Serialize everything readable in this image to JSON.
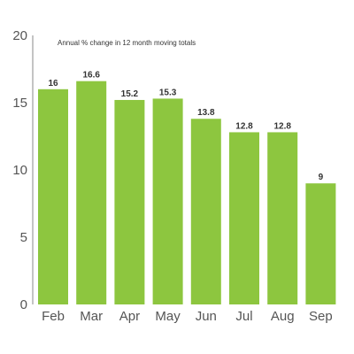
{
  "chart_data": {
    "type": "bar",
    "annotation": "Annual % change in 12 month moving totals",
    "categories": [
      "Feb",
      "Mar",
      "Apr",
      "May",
      "Jun",
      "Jul",
      "Aug",
      "Sep"
    ],
    "values": [
      16,
      16.6,
      15.2,
      15.3,
      13.8,
      12.8,
      12.8,
      9
    ],
    "value_labels": [
      "16",
      "16.6",
      "15.2",
      "15.3",
      "13.8",
      "12.8",
      "12.8",
      "9"
    ],
    "y_ticks": [
      0,
      5,
      10,
      15,
      20
    ],
    "y_tick_labels": [
      "0",
      "5",
      "10",
      "15",
      "20"
    ],
    "ylim": [
      0,
      20
    ],
    "grid": false,
    "legend": "none",
    "bar_color": "#8dc63f"
  }
}
